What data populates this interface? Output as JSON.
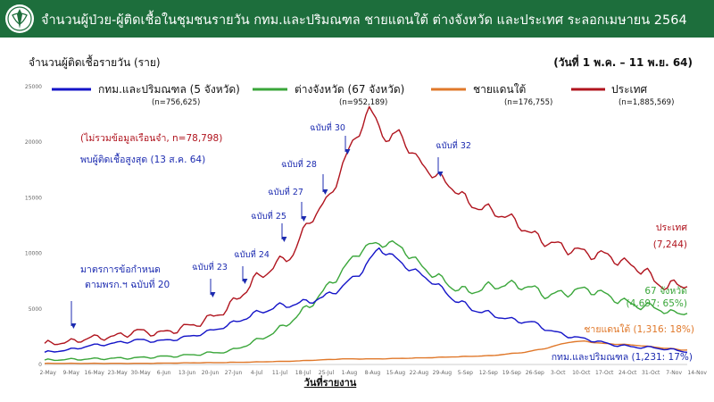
{
  "header": {
    "title": "จำนวนผู้ป่วย-ผู้ติดเชื้อในชุมชนรายวัน กทม.และปริมณฑล ชายแดนใต้ ต่างจังหวัด และประเทศ ระลอกเมษายน 2564"
  },
  "colors": {
    "header_bg": "#1d6e3c",
    "bkk": "#1414c8",
    "prov": "#3aa63a",
    "south": "#e0782a",
    "country": "#b0141e",
    "navy_text": "#1c2bb0"
  },
  "chart_data": {
    "type": "line",
    "title": "",
    "ylabel": "จำนวนผู้ติดเชื้อรายวัน (ราย)",
    "xlabel": "วันที่รายงาน",
    "date_range": "(วันที่ 1 พ.ค. – 11 พ.ย. 64)",
    "ylim": [
      0,
      25000
    ],
    "yticks": [
      "0",
      "5000",
      "10000",
      "15000",
      "20000",
      "25000"
    ],
    "x_start": "1-May",
    "x_days": 195,
    "x_ticks": [
      "2-May",
      "9-May",
      "16-May",
      "23-May",
      "30-May",
      "6-Jun",
      "13-Jun",
      "20-Jun",
      "27-Jun",
      "4-Jul",
      "11-Jul",
      "18-Jul",
      "25-Jul",
      "1-Aug",
      "8-Aug",
      "15-Aug",
      "22-Aug",
      "29-Aug",
      "5-Sep",
      "12-Sep",
      "19-Sep",
      "26-Sep",
      "3-Oct",
      "10-Oct",
      "17-Oct",
      "24-Oct",
      "31-Oct",
      "7-Nov",
      "14-Nov"
    ],
    "series": [
      {
        "key": "country",
        "name": "ประเทศ",
        "n_label": "(n=1,885,569)",
        "color": "#b0141e",
        "anchors": [
          [
            0,
            1900
          ],
          [
            7,
            2000
          ],
          [
            14,
            2400
          ],
          [
            21,
            2500
          ],
          [
            28,
            3000
          ],
          [
            35,
            2800
          ],
          [
            42,
            3300
          ],
          [
            49,
            4000
          ],
          [
            56,
            5200
          ],
          [
            63,
            7500
          ],
          [
            70,
            9000
          ],
          [
            75,
            10000
          ],
          [
            80,
            13000
          ],
          [
            86,
            15000
          ],
          [
            90,
            18000
          ],
          [
            94,
            20500
          ],
          [
            98,
            22900
          ],
          [
            101,
            21500
          ],
          [
            104,
            20000
          ],
          [
            107,
            21000
          ],
          [
            112,
            18500
          ],
          [
            118,
            17000
          ],
          [
            124,
            15800
          ],
          [
            128,
            14500
          ],
          [
            133,
            14000
          ],
          [
            138,
            13500
          ],
          [
            143,
            12700
          ],
          [
            147,
            11700
          ],
          [
            152,
            11000
          ],
          [
            157,
            10500
          ],
          [
            164,
            10000
          ],
          [
            170,
            9800
          ],
          [
            176,
            9000
          ],
          [
            181,
            8500
          ],
          [
            184,
            7500
          ],
          [
            188,
            7000
          ],
          [
            192,
            7244
          ],
          [
            194,
            7000
          ]
        ],
        "peak_amp": 900
      },
      {
        "key": "prov",
        "name": "ต่างจังหวัด (67 จังหวัด)",
        "n_label": "(n=952,189)",
        "color": "#3aa63a",
        "anchors": [
          [
            0,
            400
          ],
          [
            14,
            500
          ],
          [
            28,
            600
          ],
          [
            42,
            800
          ],
          [
            56,
            1200
          ],
          [
            63,
            2000
          ],
          [
            70,
            3000
          ],
          [
            77,
            4500
          ],
          [
            84,
            6500
          ],
          [
            90,
            8500
          ],
          [
            96,
            10500
          ],
          [
            103,
            11000
          ],
          [
            108,
            10500
          ],
          [
            113,
            9000
          ],
          [
            118,
            8000
          ],
          [
            123,
            7000
          ],
          [
            128,
            6500
          ],
          [
            134,
            7000
          ],
          [
            140,
            7200
          ],
          [
            146,
            7000
          ],
          [
            152,
            6200
          ],
          [
            158,
            6500
          ],
          [
            164,
            6800
          ],
          [
            170,
            6200
          ],
          [
            176,
            5500
          ],
          [
            182,
            5200
          ],
          [
            186,
            5000
          ],
          [
            190,
            4500
          ],
          [
            192,
            4697
          ],
          [
            194,
            4600
          ]
        ],
        "peak_amp": 700
      },
      {
        "key": "bkk",
        "name": "กทม.และปริมณฑล (5 จังหวัด)",
        "n_label": "(n=756,625)",
        "color": "#1414c8",
        "anchors": [
          [
            0,
            1100
          ],
          [
            7,
            1300
          ],
          [
            14,
            1700
          ],
          [
            21,
            1900
          ],
          [
            28,
            2200
          ],
          [
            35,
            2100
          ],
          [
            42,
            2400
          ],
          [
            49,
            2900
          ],
          [
            56,
            3600
          ],
          [
            63,
            4500
          ],
          [
            70,
            5200
          ],
          [
            77,
            5500
          ],
          [
            84,
            6000
          ],
          [
            90,
            7000
          ],
          [
            96,
            8500
          ],
          [
            101,
            10500
          ],
          [
            106,
            9500
          ],
          [
            111,
            8500
          ],
          [
            117,
            7500
          ],
          [
            123,
            6000
          ],
          [
            129,
            5000
          ],
          [
            135,
            4500
          ],
          [
            141,
            4000
          ],
          [
            147,
            3800
          ],
          [
            153,
            3000
          ],
          [
            159,
            2500
          ],
          [
            165,
            2200
          ],
          [
            171,
            1800
          ],
          [
            177,
            1600
          ],
          [
            184,
            1500
          ],
          [
            190,
            1300
          ],
          [
            192,
            1231
          ],
          [
            194,
            1100
          ]
        ],
        "peak_amp": 500
      },
      {
        "key": "south",
        "name": "ชายแดนใต้",
        "n_label": "(n=176,755)",
        "color": "#e0782a",
        "anchors": [
          [
            0,
            100
          ],
          [
            30,
            100
          ],
          [
            60,
            200
          ],
          [
            75,
            300
          ],
          [
            90,
            500
          ],
          [
            100,
            500
          ],
          [
            115,
            600
          ],
          [
            125,
            700
          ],
          [
            135,
            800
          ],
          [
            145,
            1100
          ],
          [
            152,
            1500
          ],
          [
            158,
            2000
          ],
          [
            163,
            2100
          ],
          [
            168,
            1900
          ],
          [
            175,
            1800
          ],
          [
            180,
            1700
          ],
          [
            186,
            1500
          ],
          [
            190,
            1400
          ],
          [
            192,
            1316
          ],
          [
            194,
            1300
          ]
        ],
        "peak_amp": 120
      }
    ],
    "annotations": {
      "not_incl": "(ไม่รวมข้อมูลเรือนจำ, n=78,798)",
      "peak": "พบผู้ติดเชื้อสูงสุด (13 ส.ค. 64)",
      "measure1": "มาตรการข้อกำหนด",
      "measure2": "ตามพรก.ฯ ฉบับที่ 20",
      "decrees": [
        {
          "label": "ฉบับที่ 23",
          "day": 56,
          "arrow_day": 58
        },
        {
          "label": "ฉบับที่ 24",
          "day": 77,
          "arrow_day": 80
        },
        {
          "label": "ฉบับที่ 25",
          "day": 87,
          "arrow_day": 86
        },
        {
          "label": "ฉบับที่ 27",
          "day": 91,
          "arrow_day": 93
        },
        {
          "label": "ฉบับที่ 28",
          "day": 95,
          "arrow_day": 98
        },
        {
          "label": "ฉบับที่ 30",
          "day": 104,
          "arrow_day": 103
        },
        {
          "label": "ฉบับที่ 32",
          "day": 133,
          "arrow_day": 137
        }
      ],
      "end_country_name": "ประเทศ",
      "end_country_val": "(7,244)",
      "end_prov_name": "67 จังหวัด",
      "end_prov_val": "(4,697: 65%)",
      "end_south": "ชายแดนใต้ (1,316: 18%)",
      "end_bkk": "กทม.และปริมณฑล (1,231: 17%)"
    }
  }
}
